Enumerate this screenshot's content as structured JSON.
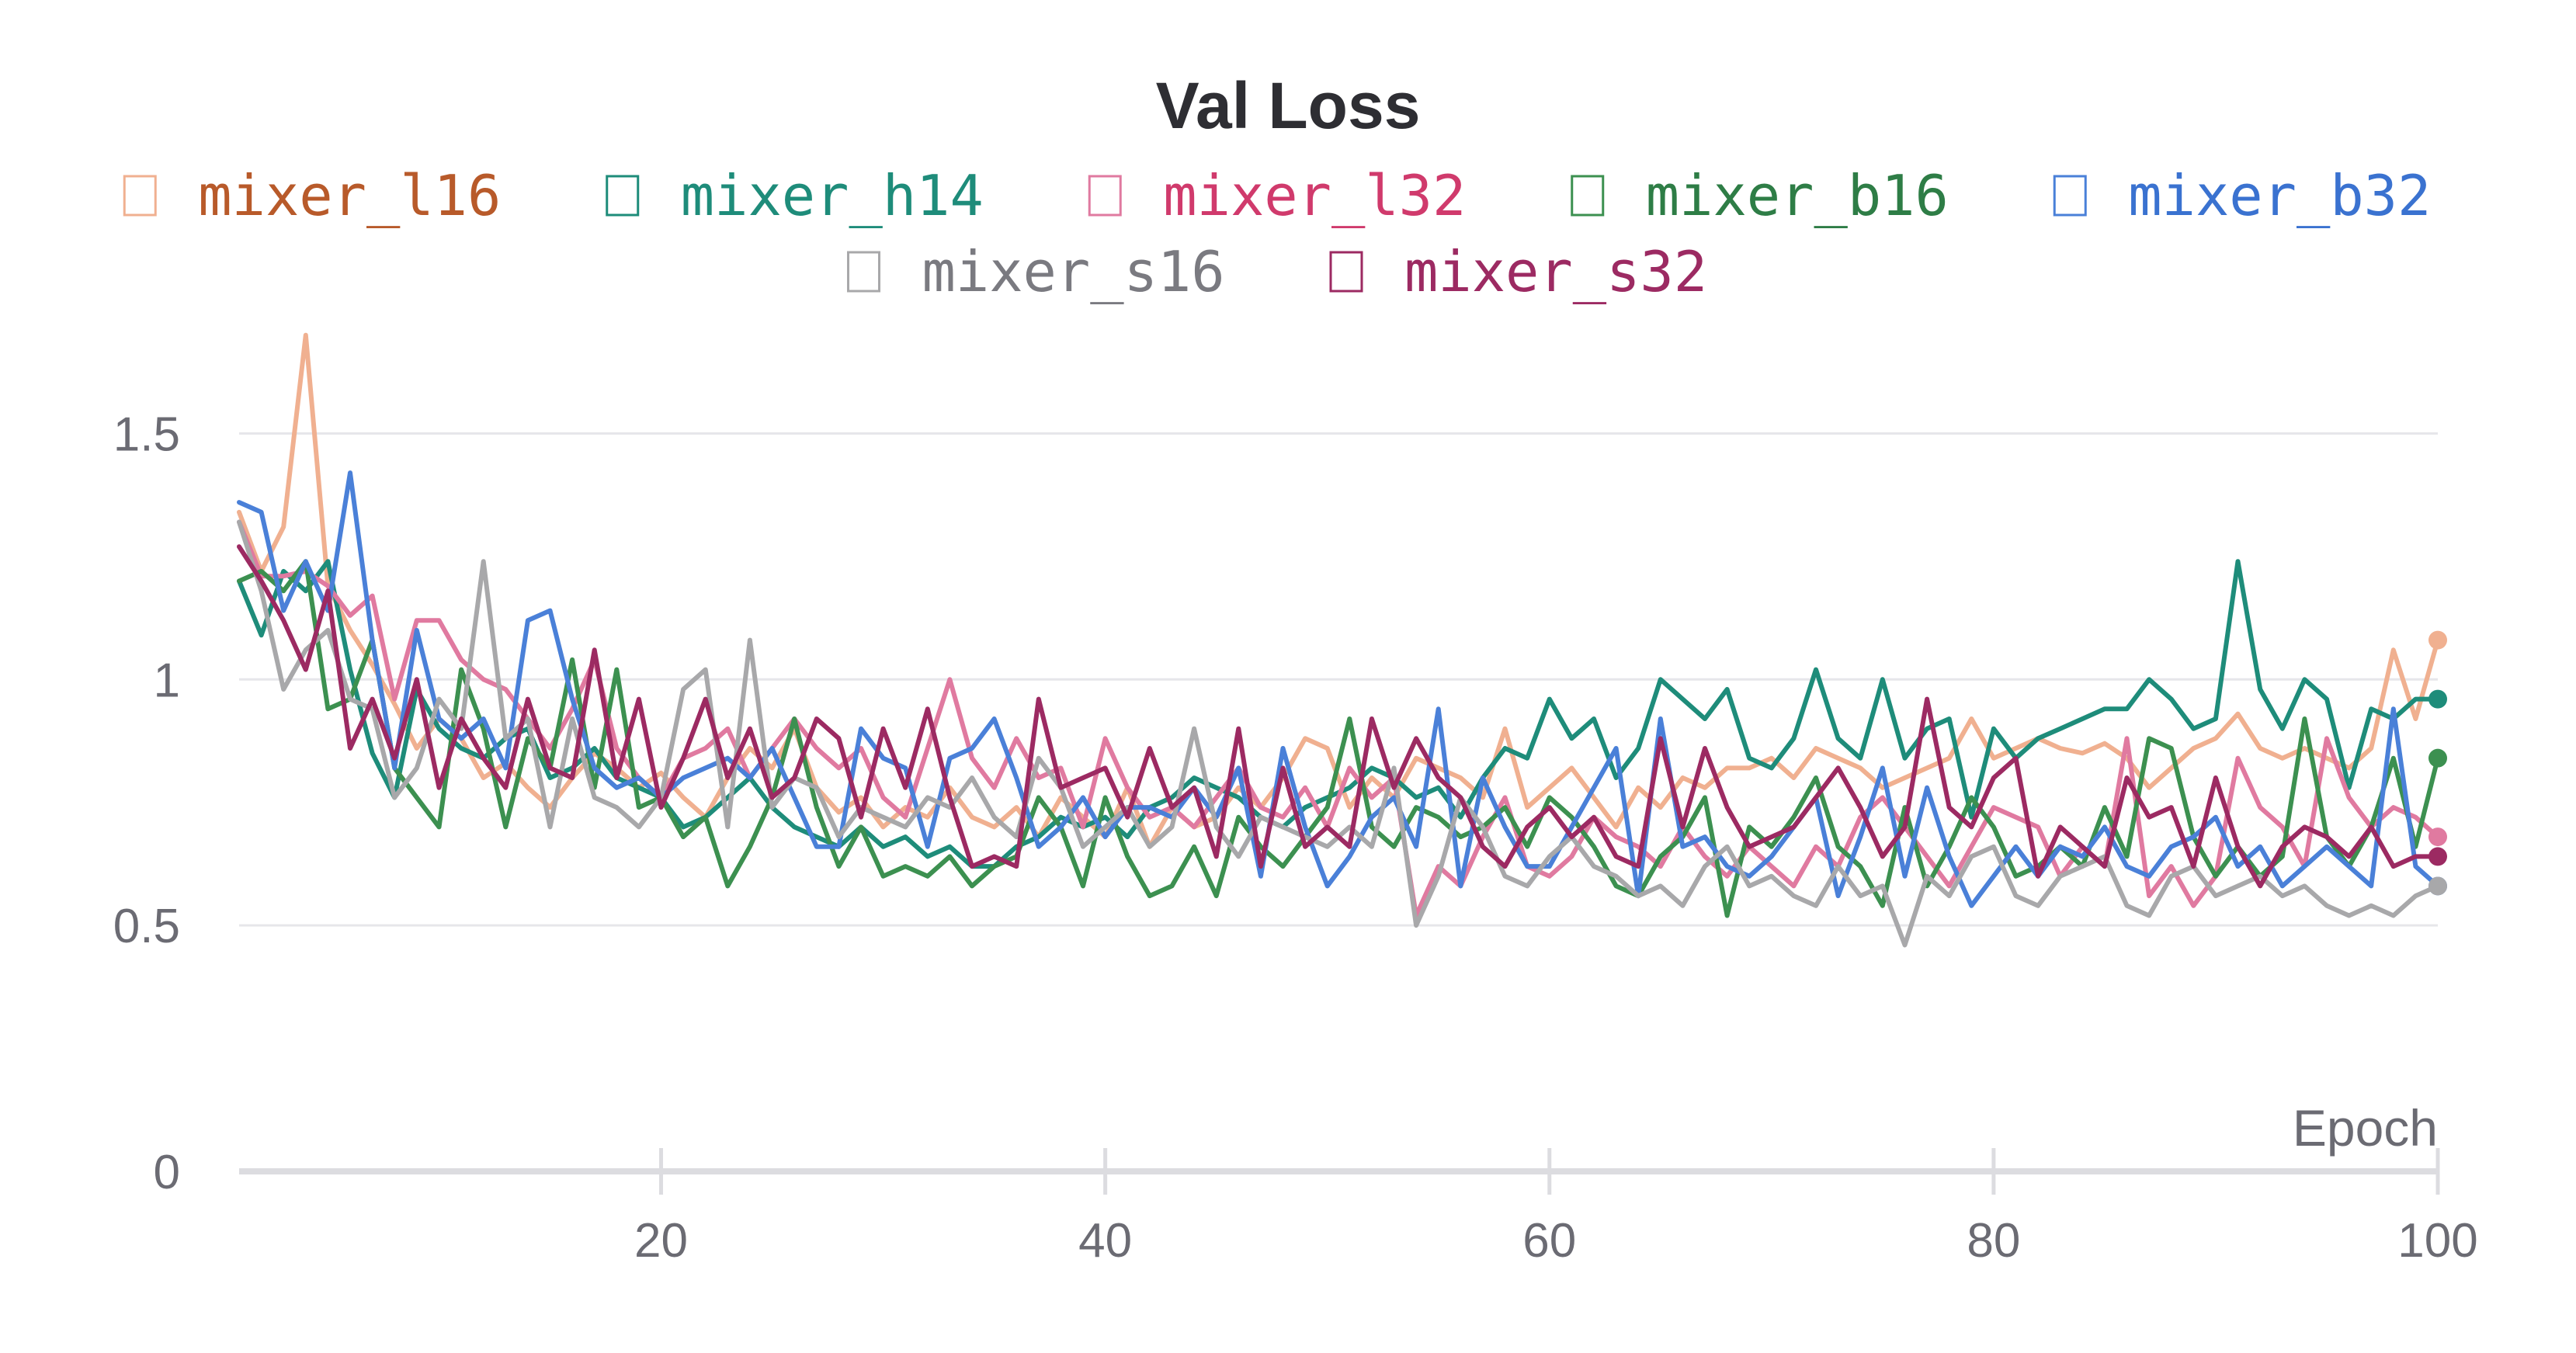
{
  "chart_data": {
    "type": "line",
    "title": "Val Loss",
    "xlabel": "Epoch",
    "ylabel": "",
    "xlim": [
      1,
      100
    ],
    "ylim": [
      0,
      1.75
    ],
    "xticks": [
      "20",
      "40",
      "60",
      "80",
      "100"
    ],
    "yticks": [
      "0",
      "0.5",
      "1",
      "1.5"
    ],
    "grid": true,
    "legend": "top",
    "x": [
      1,
      2,
      3,
      4,
      5,
      6,
      7,
      8,
      9,
      10,
      11,
      12,
      13,
      14,
      15,
      16,
      17,
      18,
      19,
      20,
      21,
      22,
      23,
      24,
      25,
      26,
      27,
      28,
      29,
      30,
      31,
      32,
      33,
      34,
      35,
      36,
      37,
      38,
      39,
      40,
      41,
      42,
      43,
      44,
      45,
      46,
      47,
      48,
      49,
      50,
      51,
      52,
      53,
      54,
      55,
      56,
      57,
      58,
      59,
      60,
      61,
      62,
      63,
      64,
      65,
      66,
      67,
      68,
      69,
      70,
      71,
      72,
      73,
      74,
      75,
      76,
      77,
      78,
      79,
      80,
      81,
      82,
      83,
      84,
      85,
      86,
      87,
      88,
      89,
      90,
      91,
      92,
      93,
      94,
      95,
      96,
      97,
      98,
      99,
      100
    ],
    "series": [
      {
        "name": "mixer_l16",
        "color": "#f0b090",
        "text_color": "#b85a2a",
        "values": [
          1.34,
          1.22,
          1.31,
          1.7,
          1.19,
          1.1,
          1.03,
          0.95,
          0.86,
          0.92,
          0.88,
          0.8,
          0.83,
          0.78,
          0.74,
          0.8,
          0.85,
          0.82,
          0.78,
          0.81,
          0.76,
          0.72,
          0.8,
          0.86,
          0.82,
          0.9,
          0.78,
          0.73,
          0.76,
          0.7,
          0.74,
          0.72,
          0.78,
          0.72,
          0.7,
          0.74,
          0.68,
          0.76,
          0.72,
          0.68,
          0.78,
          0.66,
          0.74,
          0.7,
          0.72,
          0.78,
          0.74,
          0.8,
          0.88,
          0.86,
          0.74,
          0.8,
          0.76,
          0.84,
          0.82,
          0.8,
          0.76,
          0.9,
          0.74,
          0.78,
          0.82,
          0.76,
          0.7,
          0.78,
          0.74,
          0.8,
          0.78,
          0.82,
          0.82,
          0.84,
          0.8,
          0.86,
          0.84,
          0.82,
          0.78,
          0.8,
          0.82,
          0.84,
          0.92,
          0.84,
          0.86,
          0.88,
          0.86,
          0.85,
          0.87,
          0.84,
          0.78,
          0.82,
          0.86,
          0.88,
          0.93,
          0.86,
          0.84,
          0.86,
          0.84,
          0.82,
          0.86,
          1.06,
          0.92,
          1.08
        ]
      },
      {
        "name": "mixer_h14",
        "color": "#1e8c7a",
        "text_color": "#1e8c7a",
        "values": [
          1.2,
          1.09,
          1.22,
          1.18,
          1.24,
          1.02,
          0.85,
          0.76,
          0.98,
          0.9,
          0.86,
          0.84,
          0.88,
          0.9,
          0.8,
          0.82,
          0.86,
          0.8,
          0.78,
          0.76,
          0.7,
          0.72,
          0.76,
          0.8,
          0.74,
          0.7,
          0.68,
          0.66,
          0.7,
          0.66,
          0.68,
          0.64,
          0.66,
          0.62,
          0.62,
          0.66,
          0.68,
          0.72,
          0.7,
          0.72,
          0.68,
          0.74,
          0.76,
          0.8,
          0.78,
          0.76,
          0.72,
          0.7,
          0.74,
          0.76,
          0.78,
          0.82,
          0.8,
          0.76,
          0.78,
          0.72,
          0.8,
          0.86,
          0.84,
          0.96,
          0.88,
          0.92,
          0.8,
          0.86,
          1.0,
          0.96,
          0.92,
          0.98,
          0.84,
          0.82,
          0.88,
          1.02,
          0.88,
          0.84,
          1.0,
          0.84,
          0.9,
          0.92,
          0.72,
          0.9,
          0.84,
          0.88,
          0.9,
          0.92,
          0.94,
          0.94,
          1.0,
          0.96,
          0.9,
          0.92,
          1.24,
          0.98,
          0.9,
          1.0,
          0.96,
          0.78,
          0.94,
          0.92,
          0.96,
          0.96
        ]
      },
      {
        "name": "mixer_l32",
        "color": "#e07aa0",
        "text_color": "#d03a6c",
        "values": [
          1.32,
          1.21,
          1.21,
          1.22,
          1.19,
          1.13,
          1.17,
          0.96,
          1.12,
          1.12,
          1.04,
          1.0,
          0.98,
          0.92,
          0.86,
          0.94,
          1.04,
          0.86,
          0.8,
          0.76,
          0.84,
          0.86,
          0.9,
          0.8,
          0.86,
          0.92,
          0.86,
          0.82,
          0.86,
          0.76,
          0.72,
          0.86,
          1.0,
          0.84,
          0.78,
          0.88,
          0.8,
          0.82,
          0.7,
          0.88,
          0.78,
          0.72,
          0.74,
          0.7,
          0.76,
          0.82,
          0.74,
          0.72,
          0.78,
          0.7,
          0.82,
          0.76,
          0.8,
          0.52,
          0.62,
          0.58,
          0.68,
          0.76,
          0.62,
          0.6,
          0.64,
          0.72,
          0.68,
          0.66,
          0.62,
          0.7,
          0.64,
          0.6,
          0.66,
          0.62,
          0.58,
          0.66,
          0.62,
          0.72,
          0.76,
          0.7,
          0.64,
          0.58,
          0.66,
          0.74,
          0.72,
          0.7,
          0.6,
          0.66,
          0.62,
          0.88,
          0.56,
          0.62,
          0.54,
          0.6,
          0.84,
          0.74,
          0.7,
          0.62,
          0.88,
          0.76,
          0.7,
          0.74,
          0.72,
          0.68
        ]
      },
      {
        "name": "mixer_b16",
        "color": "#3c9050",
        "text_color": "#2e7d46",
        "values": [
          1.2,
          1.22,
          1.18,
          1.24,
          0.94,
          0.96,
          1.08,
          0.82,
          0.76,
          0.7,
          1.02,
          0.9,
          0.7,
          0.88,
          0.82,
          1.04,
          0.78,
          1.02,
          0.74,
          0.76,
          0.68,
          0.72,
          0.58,
          0.66,
          0.76,
          0.92,
          0.74,
          0.62,
          0.7,
          0.6,
          0.62,
          0.6,
          0.64,
          0.58,
          0.62,
          0.64,
          0.76,
          0.7,
          0.58,
          0.76,
          0.64,
          0.56,
          0.58,
          0.66,
          0.56,
          0.72,
          0.66,
          0.62,
          0.68,
          0.74,
          0.92,
          0.7,
          0.66,
          0.74,
          0.72,
          0.68,
          0.7,
          0.74,
          0.66,
          0.76,
          0.72,
          0.66,
          0.58,
          0.56,
          0.64,
          0.68,
          0.76,
          0.52,
          0.7,
          0.66,
          0.72,
          0.8,
          0.66,
          0.62,
          0.54,
          0.74,
          0.58,
          0.66,
          0.76,
          0.7,
          0.6,
          0.62,
          0.66,
          0.62,
          0.74,
          0.64,
          0.88,
          0.86,
          0.68,
          0.6,
          0.66,
          0.6,
          0.64,
          0.92,
          0.68,
          0.62,
          0.7,
          0.84,
          0.66,
          0.84
        ]
      },
      {
        "name": "mixer_b32",
        "color": "#4a80d8",
        "text_color": "#3a72d0",
        "values": [
          1.36,
          1.34,
          1.14,
          1.24,
          1.14,
          1.42,
          1.08,
          0.82,
          1.1,
          0.92,
          0.88,
          0.92,
          0.82,
          1.12,
          1.14,
          0.96,
          0.82,
          0.78,
          0.8,
          0.76,
          0.8,
          0.82,
          0.84,
          0.8,
          0.86,
          0.76,
          0.66,
          0.66,
          0.9,
          0.84,
          0.82,
          0.66,
          0.84,
          0.86,
          0.92,
          0.8,
          0.66,
          0.7,
          0.76,
          0.68,
          0.74,
          0.74,
          0.72,
          0.78,
          0.72,
          0.82,
          0.6,
          0.86,
          0.7,
          0.58,
          0.64,
          0.72,
          0.76,
          0.66,
          0.94,
          0.58,
          0.8,
          0.7,
          0.62,
          0.62,
          0.7,
          0.78,
          0.86,
          0.56,
          0.92,
          0.66,
          0.68,
          0.62,
          0.6,
          0.64,
          0.7,
          0.76,
          0.56,
          0.68,
          0.82,
          0.6,
          0.78,
          0.64,
          0.54,
          0.6,
          0.66,
          0.6,
          0.66,
          0.64,
          0.7,
          0.62,
          0.6,
          0.66,
          0.68,
          0.72,
          0.62,
          0.66,
          0.58,
          0.62,
          0.66,
          0.62,
          0.58,
          0.94,
          0.62,
          0.58
        ]
      },
      {
        "name": "mixer_s16",
        "color": "#a8a8aa",
        "text_color": "#7a7a80",
        "values": [
          1.32,
          1.18,
          0.98,
          1.06,
          1.1,
          0.96,
          0.94,
          0.76,
          0.82,
          0.96,
          0.9,
          1.24,
          0.88,
          0.92,
          0.7,
          0.92,
          0.76,
          0.74,
          0.7,
          0.76,
          0.98,
          1.02,
          0.7,
          1.08,
          0.74,
          0.8,
          0.78,
          0.68,
          0.74,
          0.72,
          0.7,
          0.76,
          0.74,
          0.8,
          0.72,
          0.68,
          0.84,
          0.78,
          0.66,
          0.7,
          0.74,
          0.66,
          0.7,
          0.9,
          0.7,
          0.64,
          0.72,
          0.7,
          0.68,
          0.66,
          0.7,
          0.66,
          0.82,
          0.5,
          0.6,
          0.76,
          0.7,
          0.6,
          0.58,
          0.64,
          0.68,
          0.62,
          0.6,
          0.56,
          0.58,
          0.54,
          0.62,
          0.66,
          0.58,
          0.6,
          0.56,
          0.54,
          0.62,
          0.56,
          0.58,
          0.46,
          0.6,
          0.56,
          0.64,
          0.66,
          0.56,
          0.54,
          0.6,
          0.62,
          0.64,
          0.54,
          0.52,
          0.6,
          0.62,
          0.56,
          0.58,
          0.6,
          0.56,
          0.58,
          0.54,
          0.52,
          0.54,
          0.52,
          0.56,
          0.58
        ]
      },
      {
        "name": "mixer_s32",
        "color": "#9c2a62",
        "text_color": "#9c2a62",
        "values": [
          1.27,
          1.2,
          1.12,
          1.02,
          1.18,
          0.86,
          0.96,
          0.84,
          1.0,
          0.78,
          0.92,
          0.84,
          0.78,
          0.96,
          0.82,
          0.8,
          1.06,
          0.8,
          0.96,
          0.74,
          0.84,
          0.96,
          0.8,
          0.9,
          0.76,
          0.8,
          0.92,
          0.88,
          0.72,
          0.9,
          0.78,
          0.94,
          0.76,
          0.62,
          0.64,
          0.62,
          0.96,
          0.78,
          0.8,
          0.82,
          0.72,
          0.86,
          0.74,
          0.78,
          0.64,
          0.9,
          0.62,
          0.82,
          0.66,
          0.7,
          0.66,
          0.92,
          0.78,
          0.88,
          0.8,
          0.76,
          0.66,
          0.62,
          0.7,
          0.74,
          0.68,
          0.72,
          0.64,
          0.62,
          0.88,
          0.7,
          0.86,
          0.74,
          0.66,
          0.68,
          0.7,
          0.76,
          0.82,
          0.74,
          0.64,
          0.7,
          0.96,
          0.74,
          0.7,
          0.8,
          0.84,
          0.6,
          0.7,
          0.66,
          0.62,
          0.8,
          0.72,
          0.74,
          0.62,
          0.8,
          0.66,
          0.58,
          0.66,
          0.7,
          0.68,
          0.64,
          0.7,
          0.62,
          0.64,
          0.64
        ]
      }
    ]
  }
}
